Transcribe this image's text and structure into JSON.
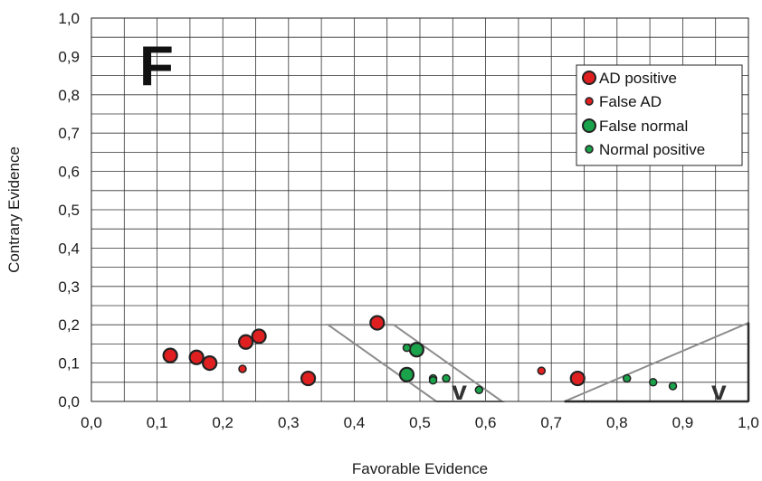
{
  "chart_data": {
    "type": "scatter",
    "panel_label": "F",
    "xlabel": "Favorable Evidence",
    "ylabel": "Contrary Evidence",
    "xlim": [
      0,
      1
    ],
    "ylim": [
      0,
      1
    ],
    "x_ticks": [
      "0,0",
      "0,1",
      "0,2",
      "0,3",
      "0,4",
      "0,5",
      "0,6",
      "0,7",
      "0,8",
      "0,9",
      "1,0"
    ],
    "y_ticks": [
      "0,0",
      "0,1",
      "0,2",
      "0,3",
      "0,4",
      "0,5",
      "0,6",
      "0,7",
      "0,8",
      "0,9",
      "1,0"
    ],
    "grid": true,
    "grid_step": 0.05,
    "legend_position": "top-right",
    "series": [
      {
        "name": "AD positive",
        "color": "#e02020",
        "marker": "large",
        "points": [
          {
            "x": 0.12,
            "y": 0.12
          },
          {
            "x": 0.16,
            "y": 0.115
          },
          {
            "x": 0.18,
            "y": 0.1
          },
          {
            "x": 0.235,
            "y": 0.155
          },
          {
            "x": 0.255,
            "y": 0.17
          },
          {
            "x": 0.33,
            "y": 0.06
          },
          {
            "x": 0.435,
            "y": 0.205
          },
          {
            "x": 0.74,
            "y": 0.06
          }
        ]
      },
      {
        "name": "False AD",
        "color": "#e02020",
        "marker": "small",
        "points": [
          {
            "x": 0.23,
            "y": 0.085
          },
          {
            "x": 0.685,
            "y": 0.08
          }
        ]
      },
      {
        "name": "False normal",
        "color": "#1aa34a",
        "marker": "large",
        "points": [
          {
            "x": 0.495,
            "y": 0.135
          },
          {
            "x": 0.48,
            "y": 0.07
          }
        ]
      },
      {
        "name": "Normal positive",
        "color": "#1aa34a",
        "marker": "small",
        "points": [
          {
            "x": 0.48,
            "y": 0.14
          },
          {
            "x": 0.52,
            "y": 0.06
          },
          {
            "x": 0.52,
            "y": 0.055
          },
          {
            "x": 0.54,
            "y": 0.06
          },
          {
            "x": 0.59,
            "y": 0.03
          },
          {
            "x": 0.815,
            "y": 0.06
          },
          {
            "x": 0.855,
            "y": 0.05
          },
          {
            "x": 0.885,
            "y": 0.04
          }
        ]
      }
    ],
    "regions": [
      {
        "label": "v",
        "color": "#8c8c8c",
        "polygon": [
          [
            0.36,
            0.2
          ],
          [
            0.46,
            0.2
          ],
          [
            0.625,
            0.0
          ],
          [
            0.525,
            0.0
          ]
        ],
        "label_at": {
          "x": 0.56,
          "y": 0.0
        }
      },
      {
        "label": "v",
        "color": "#8c8c8c",
        "polygon": [
          [
            0.72,
            0.0
          ],
          [
            1.0,
            0.205
          ],
          [
            1.0,
            0.0
          ]
        ],
        "label_at": {
          "x": 0.955,
          "y": 0.0
        }
      }
    ]
  }
}
